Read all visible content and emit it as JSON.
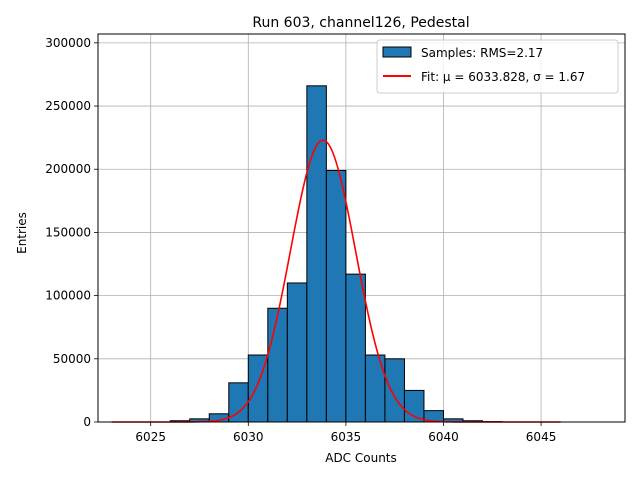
{
  "chart_data": {
    "type": "bar",
    "title": "Run 603, channel126, Pedestal",
    "xlabel": "ADC Counts",
    "ylabel": "Entries",
    "xlim": [
      6022.3,
      6049.3
    ],
    "ylim": [
      0,
      307000
    ],
    "grid": true,
    "legend_position": "top-right",
    "x_ticks": [
      6025,
      6030,
      6035,
      6040,
      6045
    ],
    "y_ticks": [
      0,
      50000,
      100000,
      150000,
      200000,
      250000,
      300000
    ],
    "histogram": {
      "name": "Samples: RMS=2.17",
      "color": "#1f77b4",
      "edge_color": "#000000",
      "bins": [
        {
          "x0": 6023,
          "x1": 6024,
          "value": 0
        },
        {
          "x0": 6024,
          "x1": 6025,
          "value": 0
        },
        {
          "x0": 6025,
          "x1": 6026,
          "value": 0
        },
        {
          "x0": 6026,
          "x1": 6027,
          "value": 1000
        },
        {
          "x0": 6027,
          "x1": 6028,
          "value": 2500
        },
        {
          "x0": 6028,
          "x1": 6029,
          "value": 6500
        },
        {
          "x0": 6029,
          "x1": 6030,
          "value": 31000
        },
        {
          "x0": 6030,
          "x1": 6031,
          "value": 53000
        },
        {
          "x0": 6031,
          "x1": 6032,
          "value": 90000
        },
        {
          "x0": 6032,
          "x1": 6033,
          "value": 110000
        },
        {
          "x0": 6033,
          "x1": 6034,
          "value": 266000
        },
        {
          "x0": 6034,
          "x1": 6035,
          "value": 199000
        },
        {
          "x0": 6035,
          "x1": 6036,
          "value": 117000
        },
        {
          "x0": 6036,
          "x1": 6037,
          "value": 53000
        },
        {
          "x0": 6037,
          "x1": 6038,
          "value": 50000
        },
        {
          "x0": 6038,
          "x1": 6039,
          "value": 25000
        },
        {
          "x0": 6039,
          "x1": 6040,
          "value": 9000
        },
        {
          "x0": 6040,
          "x1": 6041,
          "value": 2500
        },
        {
          "x0": 6041,
          "x1": 6042,
          "value": 1000
        },
        {
          "x0": 6042,
          "x1": 6043,
          "value": 300
        }
      ]
    },
    "fit": {
      "name": "Fit: μ = 6033.828, σ = 1.67",
      "color": "#ff0000",
      "mu": 6033.828,
      "sigma": 1.67,
      "amplitude": 223000,
      "x_range": [
        6023,
        6046
      ]
    }
  }
}
